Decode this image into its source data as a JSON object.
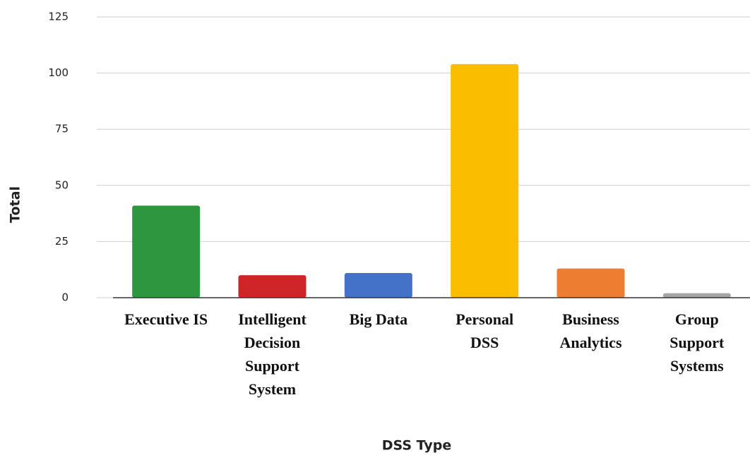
{
  "chart_data": {
    "type": "bar",
    "categories": [
      "Executive IS",
      "Intelligent Decision Support System",
      "Big Data",
      "Personal DSS",
      "Business Analytics",
      "Group Support Systems"
    ],
    "values": [
      41,
      10,
      11,
      104,
      13,
      2
    ],
    "colors": [
      "#2f9640",
      "#cf2528",
      "#4472c8",
      "#fbbd00",
      "#ed7d31",
      "#a5a5a5"
    ],
    "x_label": "DSS Type",
    "y_label": "Total",
    "ylim": [
      0,
      125
    ],
    "yticks": [
      0,
      25,
      50,
      75,
      100,
      125
    ],
    "grid": true
  }
}
